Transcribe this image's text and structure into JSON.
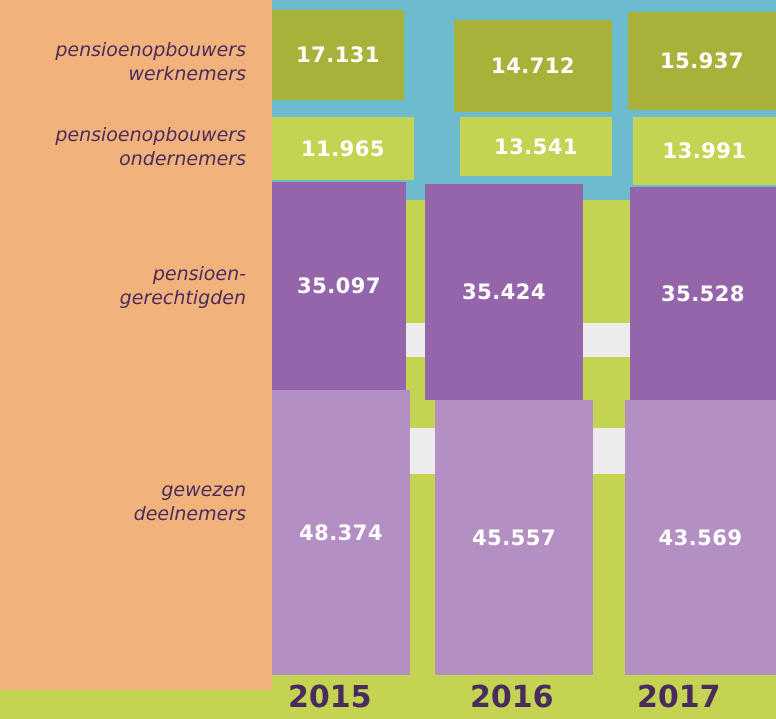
{
  "rows": [
    {
      "label": [
        "pensioenopbouwers",
        "werknemers"
      ],
      "cells": [
        "17.131",
        "14.712",
        "15.937"
      ]
    },
    {
      "label": [
        "pensioenopbouwers",
        "ondernemers"
      ],
      "cells": [
        "11.965",
        "13.541",
        "13.991"
      ]
    },
    {
      "label": [
        "pensioen-",
        "gerechtigden"
      ],
      "cells": [
        "35.097",
        "35.424",
        "35.528"
      ]
    },
    {
      "label": [
        "gewezen",
        "deelnemers"
      ],
      "cells": [
        "48.374",
        "45.557",
        "43.569"
      ]
    }
  ],
  "years": [
    "2015",
    "2016",
    "2017"
  ]
}
